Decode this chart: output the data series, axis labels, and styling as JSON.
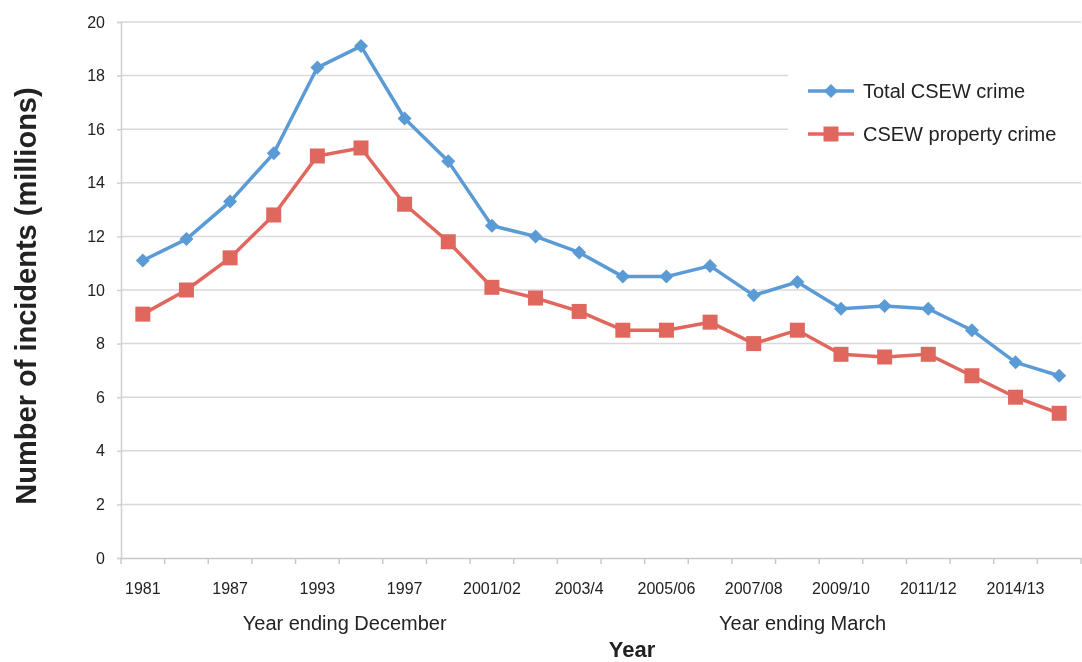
{
  "chart_data": {
    "type": "line",
    "xlabel": "Year",
    "ylabel": "Number of incidents (millions)",
    "annotations": [
      "Year ending December",
      "Year ending March"
    ],
    "categories": [
      "1981",
      null,
      "1987",
      null,
      "1993",
      null,
      "1997",
      null,
      "2001/02",
      null,
      "2003/4",
      null,
      "2005/06",
      null,
      "2007/08",
      null,
      "2009/10",
      null,
      "2011/12",
      null,
      "2014/13",
      null
    ],
    "series": [
      {
        "name": "Total CSEW crime",
        "color": "#5b9bd5",
        "marker": "diamond",
        "values": [
          11.1,
          11.9,
          13.3,
          15.1,
          18.3,
          19.1,
          16.4,
          14.8,
          12.4,
          12.0,
          11.4,
          10.5,
          10.5,
          10.9,
          9.8,
          10.3,
          9.3,
          9.4,
          9.3,
          8.5,
          7.3,
          6.8
        ]
      },
      {
        "name": "CSEW property crime",
        "color": "#e0675e",
        "marker": "square",
        "values": [
          9.1,
          10.0,
          11.2,
          12.8,
          15.0,
          15.3,
          13.2,
          11.8,
          10.1,
          9.7,
          9.2,
          8.5,
          8.5,
          8.8,
          8.0,
          8.5,
          7.6,
          7.5,
          7.6,
          6.8,
          6.0,
          5.4
        ]
      }
    ],
    "ylim": [
      0,
      20
    ],
    "yticks": [
      0,
      2,
      4,
      6,
      8,
      10,
      12,
      14,
      16,
      18,
      20
    ],
    "grid": "y",
    "legend": "top right"
  }
}
